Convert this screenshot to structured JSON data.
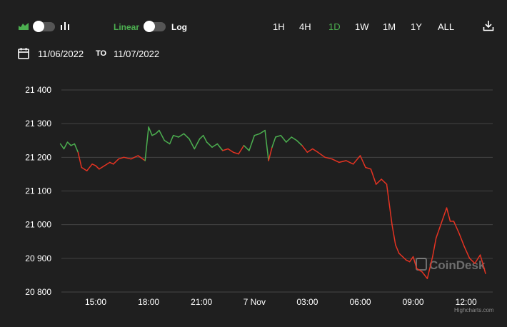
{
  "toolbar": {
    "area_icon": "area-chart-icon",
    "bar_icon": "bar-chart-icon",
    "scale_linear": "Linear",
    "scale_log": "Log",
    "ranges": [
      "1H",
      "4H",
      "1D",
      "1W",
      "1M",
      "1Y",
      "ALL"
    ],
    "active_range": "1D",
    "download_icon": "download-icon"
  },
  "date_range": {
    "calendar_icon": "calendar-icon",
    "from": "11/06/2022",
    "to_label": "TO",
    "to": "11/07/2022"
  },
  "watermark": "CoinDesk",
  "credit": "Highcharts.com",
  "colors": {
    "background": "#1f1f1f",
    "up": "#4caf50",
    "down": "#e53322",
    "grid": "#444444",
    "accent": "#4caf50"
  },
  "chart_data": {
    "type": "line",
    "title": "",
    "xlabel": "",
    "ylabel": "",
    "ylim": [
      20800,
      21400
    ],
    "y_ticks": [
      21400,
      21300,
      21200,
      21100,
      21000,
      20900,
      20800
    ],
    "y_tick_labels": [
      "21 400",
      "21 300",
      "21 200",
      "21 100",
      "21 000",
      "20 900",
      "20 800"
    ],
    "x_ticks": [
      "15:00",
      "18:00",
      "21:00",
      "7 Nov",
      "03:00",
      "06:00",
      "09:00",
      "12:00"
    ],
    "x_tick_hours": [
      15,
      18,
      21,
      24,
      27,
      30,
      33,
      36
    ],
    "grid": true,
    "legend": "none",
    "series": [
      {
        "x": [
          13.0,
          13.2,
          13.4,
          13.6,
          13.8,
          14.0,
          14.2,
          14.5,
          14.8,
          15.0,
          15.2,
          15.5,
          15.8,
          16.0,
          16.3,
          16.6,
          17.0,
          17.4,
          17.8,
          18.0,
          18.2,
          18.4,
          18.6,
          18.9,
          19.2,
          19.4,
          19.7,
          20.0,
          20.3,
          20.6,
          20.9,
          21.1,
          21.3,
          21.6,
          21.9,
          22.2,
          22.5,
          22.8,
          23.1,
          23.4,
          23.7,
          24.0,
          24.3,
          24.6,
          24.8,
          25.0,
          25.2,
          25.5,
          25.8,
          26.1,
          26.4,
          26.7,
          27.0,
          27.3,
          27.6,
          28.0,
          28.4,
          28.8,
          29.2,
          29.6,
          30.0,
          30.3,
          30.6,
          30.9,
          31.2,
          31.5,
          31.8,
          32.0,
          32.2,
          32.4,
          32.6,
          32.8,
          33.0,
          33.2,
          33.5,
          33.8,
          34.1,
          34.3,
          34.6,
          34.9,
          35.1,
          35.3,
          35.6,
          35.9,
          36.2,
          36.5,
          36.8,
          37.0,
          37.1
        ],
        "y": [
          21240,
          21225,
          21245,
          21235,
          21240,
          21215,
          21170,
          21160,
          21180,
          21175,
          21165,
          21175,
          21185,
          21180,
          21195,
          21200,
          21195,
          21205,
          21190,
          21290,
          21265,
          21270,
          21280,
          21250,
          21240,
          21265,
          21260,
          21270,
          21255,
          21225,
          21255,
          21265,
          21245,
          21230,
          21240,
          21220,
          21225,
          21215,
          21210,
          21235,
          21220,
          21265,
          21270,
          21280,
          21190,
          21230,
          21260,
          21265,
          21245,
          21260,
          21250,
          21235,
          21215,
          21225,
          21215,
          21200,
          21195,
          21185,
          21190,
          21180,
          21205,
          21170,
          21165,
          21120,
          21135,
          21120,
          21000,
          20940,
          20915,
          20905,
          20895,
          20890,
          20905,
          20870,
          20860,
          20840,
          20905,
          20960,
          21005,
          21050,
          21010,
          21010,
          20975,
          20935,
          20900,
          20885,
          20910,
          20875,
          20855
        ]
      }
    ]
  }
}
